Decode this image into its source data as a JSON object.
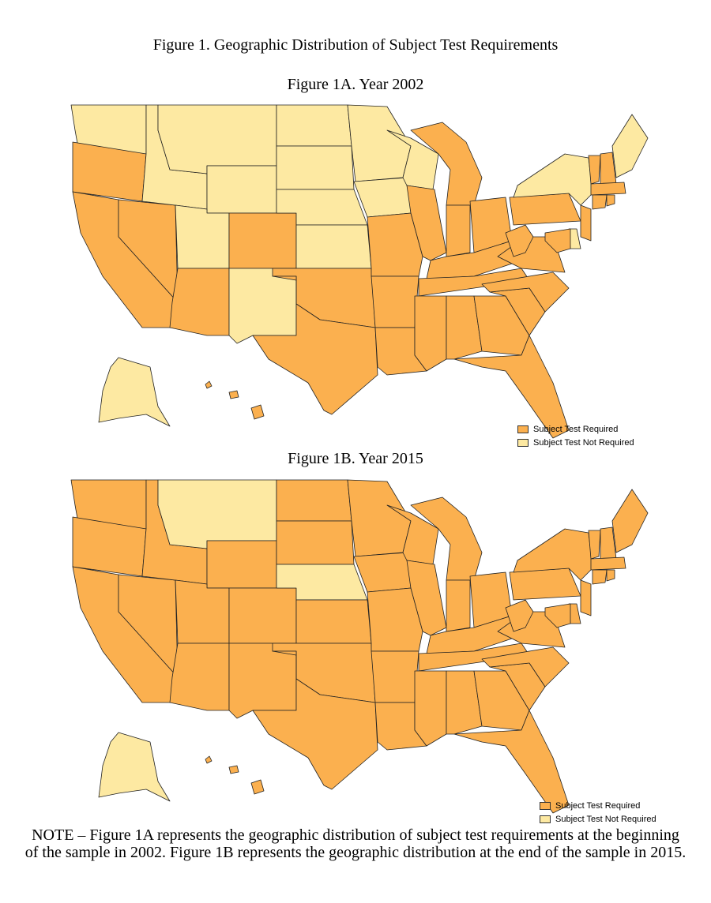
{
  "figure_title": "Figure 1. Geographic Distribution of Subject Test Requirements",
  "maps": [
    {
      "subtitle": "Figure 1A. Year 2002",
      "not_required_states": [
        "WA",
        "MT",
        "ID",
        "WY",
        "UT",
        "ND",
        "SD",
        "NE",
        "KS",
        "MN",
        "IA",
        "WI",
        "NM",
        "NY",
        "ME",
        "DE",
        "AK"
      ],
      "legend": [
        "Subject Test Required",
        "Subject Test Not Required"
      ]
    },
    {
      "subtitle": "Figure 1B. Year 2015",
      "not_required_states": [
        "MT",
        "NE",
        "AK"
      ],
      "legend": [
        "Subject Test Required",
        "Subject Test Not Required"
      ]
    }
  ],
  "colors": {
    "required": "#fbb04f",
    "not_required": "#fde9a2",
    "border": "#222222"
  },
  "note": "NOTE – Figure 1A represents the geographic distribution of subject test requirements at the beginning of the sample in 2002. Figure 1B represents the geographic distribution at the end of the sample in 2015."
}
